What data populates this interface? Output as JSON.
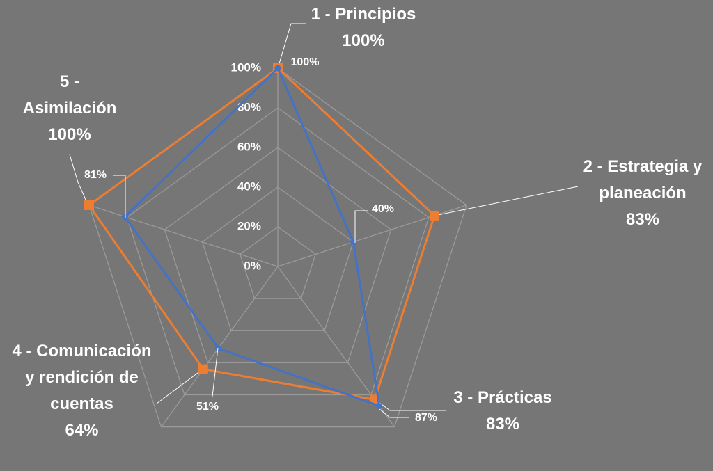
{
  "chart_data": {
    "type": "radar",
    "categories": [
      "1 - Principios",
      "2 - Estrategia y planeación",
      "3 - Prácticas",
      "4 - Comunicación y rendición de cuentas",
      "5 - Asimilación"
    ],
    "series": [
      {
        "color": "#4472c4",
        "values": [
          100,
          40,
          87,
          51,
          81
        ],
        "value_labels": [
          "100%",
          "40%",
          "87%",
          "51%",
          "81%"
        ]
      },
      {
        "color": "#ed7d31",
        "values": [
          100,
          83,
          83,
          64,
          100
        ],
        "value_labels": [
          "100%",
          "83%",
          "83%",
          "64%",
          "100%"
        ]
      }
    ],
    "ylim": [
      0,
      100
    ],
    "yticks": [
      {
        "value": 0,
        "label": "0%"
      },
      {
        "value": 20,
        "label": "20%"
      },
      {
        "value": 40,
        "label": "40%"
      },
      {
        "value": 60,
        "label": "60%"
      },
      {
        "value": 80,
        "label": "80%"
      },
      {
        "value": 100,
        "label": "100%"
      }
    ],
    "grid": true
  }
}
